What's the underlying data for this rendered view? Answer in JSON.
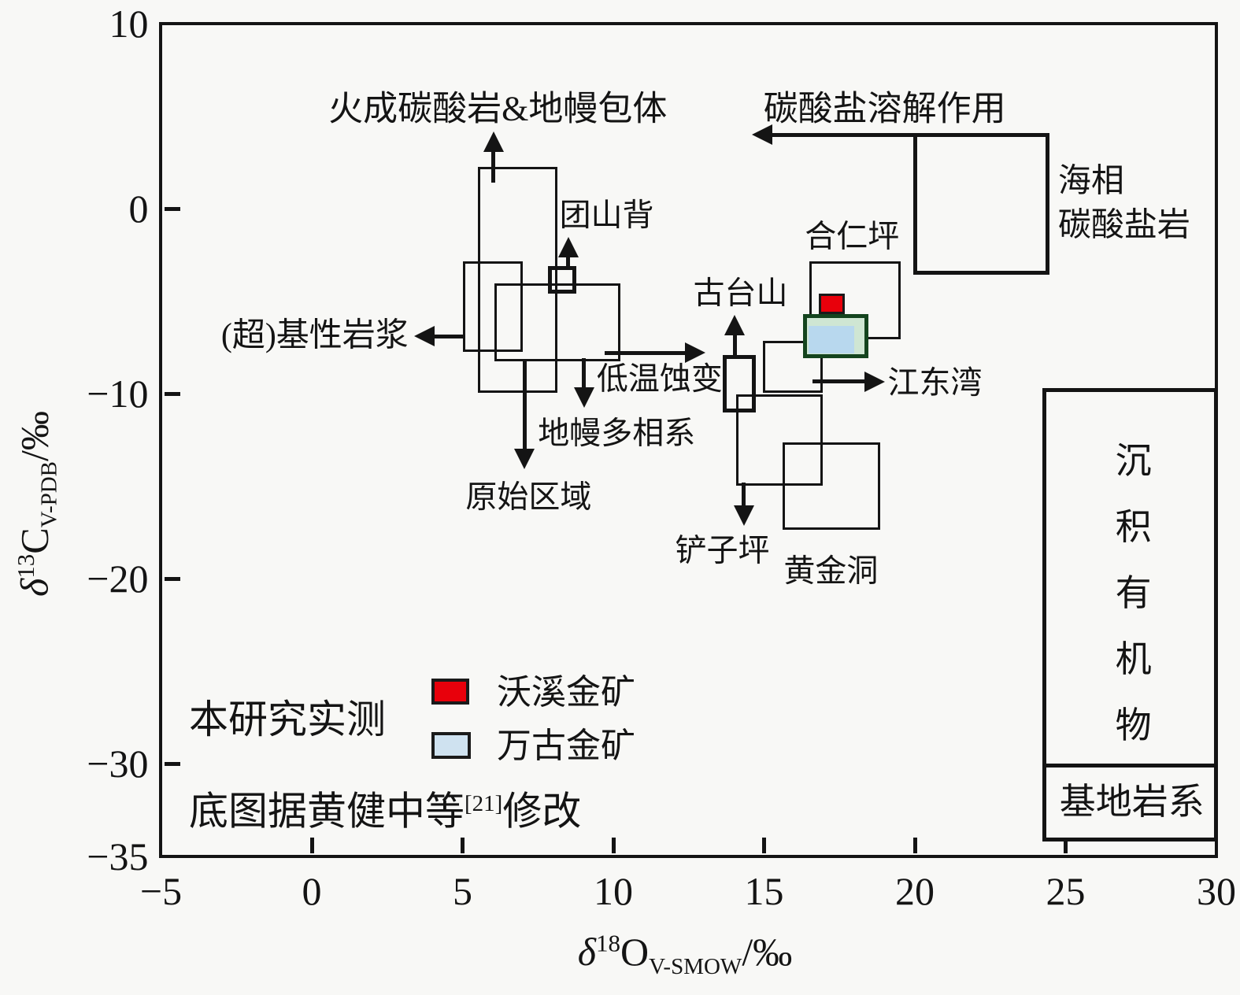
{
  "chart_data": {
    "type": "scatter",
    "subtype": "isotope-field-diagram",
    "xlabel_parts": {
      "delta": "δ",
      "sup": "18",
      "base": "O",
      "sub": "V-SMOW",
      "unit": "/‰"
    },
    "ylabel_parts": {
      "delta": "δ",
      "sup": "13",
      "base": "C",
      "sub": "V-PDB",
      "unit": "/‰"
    },
    "xlim": [
      -5,
      30
    ],
    "ylim": [
      -35,
      10
    ],
    "x_ticks": [
      {
        "v": -5,
        "label": "−5"
      },
      {
        "v": 0,
        "label": "0"
      },
      {
        "v": 5,
        "label": "5"
      },
      {
        "v": 10,
        "label": "10"
      },
      {
        "v": 15,
        "label": "15"
      },
      {
        "v": 20,
        "label": "20"
      },
      {
        "v": 25,
        "label": "25"
      },
      {
        "v": 30,
        "label": "30"
      }
    ],
    "y_ticks": [
      {
        "v": 10,
        "label": "10"
      },
      {
        "v": 0,
        "label": "0"
      },
      {
        "v": -10,
        "label": "−10"
      },
      {
        "v": -20,
        "label": "−20"
      },
      {
        "v": -30,
        "label": "−30"
      },
      {
        "v": -35,
        "label": "−35"
      }
    ],
    "grid": false,
    "line_color": "#141414",
    "field_boxes": [
      {
        "name": "igneous-carbonatite-mantle",
        "x": [
          5.55,
          8.1
        ],
        "y": [
          -9.9,
          2.2
        ],
        "thick": false
      },
      {
        "name": "ultrabasic-magma",
        "x": [
          5.05,
          6.95
        ],
        "y": [
          -7.7,
          -2.9
        ],
        "thick": false
      },
      {
        "name": "mantle-polyphase",
        "x": [
          6.1,
          10.2
        ],
        "y": [
          -8.2,
          -4.1
        ],
        "thick": false
      },
      {
        "name": "tuanshanbei",
        "x": [
          7.9,
          8.7
        ],
        "y": [
          -4.5,
          -3.2
        ],
        "thick": true
      },
      {
        "name": "gutaishan",
        "x": [
          13.7,
          14.65
        ],
        "y": [
          -10.9,
          -8.0
        ],
        "thick": true
      },
      {
        "name": "jiangdongwan",
        "x": [
          15.0,
          16.9
        ],
        "y": [
          -9.9,
          -7.2
        ],
        "thick": false
      },
      {
        "name": "chanziping",
        "x": [
          14.1,
          16.9
        ],
        "y": [
          -14.9,
          -10.1
        ],
        "thick": false
      },
      {
        "name": "huangjindong",
        "x": [
          15.65,
          18.8
        ],
        "y": [
          -17.3,
          -12.7
        ],
        "thick": false
      },
      {
        "name": "herenping",
        "x": [
          16.55,
          19.5
        ],
        "y": [
          -7.0,
          -2.9
        ],
        "thick": false
      },
      {
        "name": "marine-carbonate",
        "x": [
          20.0,
          24.4
        ],
        "y": [
          -3.45,
          4.0
        ],
        "thick": true
      },
      {
        "name": "sedimentary-organic",
        "x": [
          24.3,
          30.0
        ],
        "y": [
          -30.1,
          -9.8
        ],
        "thick": true
      },
      {
        "name": "basement",
        "x": [
          24.3,
          30.0
        ],
        "y": [
          -34.1,
          -30.1
        ],
        "thick": true
      }
    ],
    "sample_boxes": [
      {
        "name": "woxi",
        "x": [
          16.85,
          17.65
        ],
        "y": [
          -5.65,
          -4.65
        ],
        "fill": "#e8000b",
        "border": "#1a1a1a"
      },
      {
        "name": "wangu",
        "x": [
          16.35,
          18.4
        ],
        "y": [
          -8.0,
          -5.8
        ],
        "fill": "#cfe6d3",
        "border": "#14441e",
        "inner_fill": "#b8d8ee"
      }
    ],
    "arrows": [
      {
        "name": "to-igneous-up",
        "from": [
          6.02,
          1.4
        ],
        "to": [
          6.02,
          4.15
        ]
      },
      {
        "name": "tuanshanbei-up",
        "from": [
          8.5,
          -3.2
        ],
        "to": [
          8.5,
          -1.55
        ]
      },
      {
        "name": "to-ultrabasic-left",
        "from": [
          5.05,
          -6.9
        ],
        "to": [
          3.4,
          -6.9
        ]
      },
      {
        "name": "low-t-right",
        "from": [
          9.7,
          -7.8
        ],
        "to": [
          13.05,
          -7.8
        ]
      },
      {
        "name": "low-t-down",
        "from": [
          9.03,
          -8.1
        ],
        "to": [
          9.03,
          -10.75
        ]
      },
      {
        "name": "to-primitive-down",
        "from": [
          7.05,
          -8.2
        ],
        "to": [
          7.05,
          -14.1
        ]
      },
      {
        "name": "gutaishan-up",
        "from": [
          14.03,
          -8.0
        ],
        "to": [
          14.03,
          -5.75
        ]
      },
      {
        "name": "chanziping-down",
        "from": [
          14.33,
          -14.8
        ],
        "to": [
          14.33,
          -17.15
        ]
      },
      {
        "name": "jiangdongwan-right",
        "from": [
          16.6,
          -9.36
        ],
        "to": [
          19.0,
          -9.36
        ]
      },
      {
        "name": "carbonate-dissolution-left",
        "from": [
          20.0,
          4.0
        ],
        "to": [
          14.6,
          4.0
        ]
      }
    ],
    "annotations": [
      {
        "name": "igneous-label",
        "text": "火成碳酸岩&地幔包体",
        "x": 6.17,
        "y": 5.4,
        "anchor": "center",
        "size": 44
      },
      {
        "name": "dissolution-label",
        "text": "碳酸盐溶解作用",
        "x": 19.0,
        "y": 5.4,
        "anchor": "center",
        "size": 44
      },
      {
        "name": "marine-label-line1",
        "text": "海相",
        "x": 24.75,
        "y": 1.45,
        "anchor": "left",
        "size": 42
      },
      {
        "name": "marine-label-line2",
        "text": "碳酸盐岩",
        "x": 24.75,
        "y": -0.95,
        "anchor": "left",
        "size": 42
      },
      {
        "name": "tuanshanbei-label",
        "text": "团山背",
        "x": 9.78,
        "y": -0.4,
        "anchor": "center",
        "size": 40
      },
      {
        "name": "ultrabasic-label",
        "text": "(超)基性岩浆",
        "x": 0.1,
        "y": -6.9,
        "anchor": "center",
        "size": 42
      },
      {
        "name": "low-t-label",
        "text": "低温蚀变",
        "x": 9.45,
        "y": -9.25,
        "anchor": "left",
        "size": 40
      },
      {
        "name": "mantle-polyphase-label",
        "text": "地幔多相系",
        "x": 7.5,
        "y": -12.15,
        "anchor": "left",
        "size": 40
      },
      {
        "name": "primitive-label",
        "text": "原始区域",
        "x": 5.1,
        "y": -15.6,
        "anchor": "left",
        "size": 40
      },
      {
        "name": "gutaishan-label",
        "text": "古台山",
        "x": 12.65,
        "y": -4.6,
        "anchor": "left",
        "size": 40
      },
      {
        "name": "herenping-label",
        "text": "合仁坪",
        "x": 16.35,
        "y": -1.55,
        "anchor": "left",
        "size": 40
      },
      {
        "name": "jiangdongwan-label",
        "text": "江东湾",
        "x": 19.1,
        "y": -9.45,
        "anchor": "left",
        "size": 40
      },
      {
        "name": "chanziping-label",
        "text": "铲子坪",
        "x": 12.05,
        "y": -18.5,
        "anchor": "left",
        "size": 40
      },
      {
        "name": "huangjindong-label",
        "text": "黄金洞",
        "x": 15.65,
        "y": -19.6,
        "anchor": "left",
        "size": 40
      },
      {
        "name": "sedimentary-label",
        "text": "沉积有机物",
        "x": 27.25,
        "y": -20.8,
        "anchor": "center",
        "size": 46,
        "vertical": true,
        "char_spacing_px": 84
      },
      {
        "name": "basement-label",
        "text": "基地岩系",
        "x": 27.2,
        "y": -32.1,
        "anchor": "center",
        "size": 46
      }
    ]
  },
  "legend": {
    "items": [
      {
        "name": "woxi",
        "label": "沃溪金矿",
        "fill": "#e8000b",
        "border": "#1a1a1a"
      },
      {
        "name": "wangu",
        "label": "万古金矿",
        "fill": "#cfe2f0",
        "border": "#1a1a1a"
      }
    ]
  },
  "notes": {
    "measured": "本研究实测",
    "ref_prefix": "底图据黄健中等",
    "ref_sup": "[21]",
    "ref_suffix": "修改"
  }
}
